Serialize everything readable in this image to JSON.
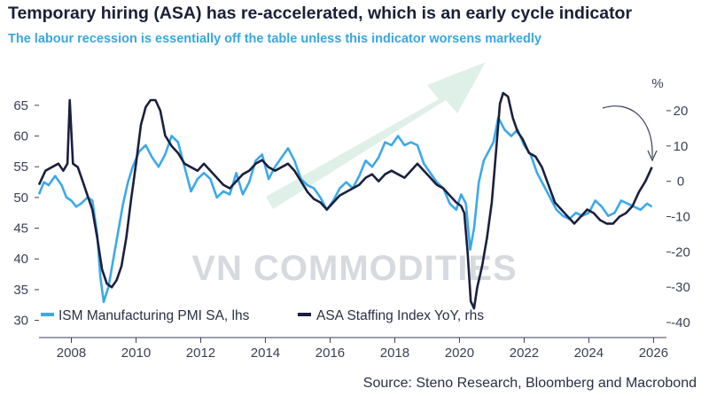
{
  "title": "Temporary hiring (ASA) has re-accelerated, which is an early cycle indicator",
  "subtitle": "The labour recession is essentially off the table unless this indicator worsens markedly",
  "source": "Source: Steno Research, Bloomberg and Macrobond",
  "watermark": "VN COMMODITIES",
  "colors": {
    "ism": "#3ca9e8",
    "asa": "#1b1f3f",
    "watermark_arrow": "#dff0e9",
    "axis": "#3b3f55"
  },
  "chart_data": {
    "type": "line",
    "title": "Temporary hiring (ASA) has re-accelerated, which is an early cycle indicator",
    "left_axis": {
      "label": "",
      "ylim": [
        28.5,
        67
      ],
      "ticks": [
        30,
        35,
        40,
        45,
        50,
        55,
        60,
        65
      ]
    },
    "right_axis": {
      "label": "%",
      "ylim": [
        -42,
        25
      ],
      "ticks": [
        -40,
        -30,
        -20,
        -10,
        0,
        10,
        20
      ]
    },
    "x_axis": {
      "xlim": [
        2007.0,
        2026.4
      ],
      "ticks": [
        2008,
        2010,
        2012,
        2014,
        2016,
        2018,
        2020,
        2022,
        2024,
        2026
      ]
    },
    "legend_position": "bottom-left",
    "series": [
      {
        "name": "ISM Manufacturing PMI SA, lhs",
        "axis": "left",
        "color": "#3ca9e8",
        "points": [
          [
            2007.0,
            50.5
          ],
          [
            2007.15,
            52.5
          ],
          [
            2007.3,
            52.0
          ],
          [
            2007.5,
            53.5
          ],
          [
            2007.7,
            52.0
          ],
          [
            2007.85,
            50.0
          ],
          [
            2008.0,
            49.5
          ],
          [
            2008.15,
            48.5
          ],
          [
            2008.3,
            49.0
          ],
          [
            2008.5,
            50.0
          ],
          [
            2008.65,
            49.5
          ],
          [
            2008.8,
            44.0
          ],
          [
            2008.9,
            37.0
          ],
          [
            2009.0,
            33.0
          ],
          [
            2009.15,
            35.5
          ],
          [
            2009.3,
            40.0
          ],
          [
            2009.45,
            44.5
          ],
          [
            2009.6,
            49.0
          ],
          [
            2009.75,
            52.5
          ],
          [
            2009.9,
            55.0
          ],
          [
            2010.1,
            57.5
          ],
          [
            2010.3,
            58.5
          ],
          [
            2010.5,
            56.5
          ],
          [
            2010.7,
            55.0
          ],
          [
            2010.9,
            57.0
          ],
          [
            2011.1,
            60.0
          ],
          [
            2011.3,
            59.0
          ],
          [
            2011.5,
            55.0
          ],
          [
            2011.7,
            51.0
          ],
          [
            2011.9,
            53.0
          ],
          [
            2012.1,
            54.0
          ],
          [
            2012.3,
            53.0
          ],
          [
            2012.5,
            50.0
          ],
          [
            2012.7,
            51.0
          ],
          [
            2012.9,
            50.5
          ],
          [
            2013.1,
            54.0
          ],
          [
            2013.3,
            50.5
          ],
          [
            2013.5,
            52.5
          ],
          [
            2013.7,
            56.0
          ],
          [
            2013.9,
            57.0
          ],
          [
            2014.1,
            53.0
          ],
          [
            2014.3,
            55.0
          ],
          [
            2014.5,
            56.5
          ],
          [
            2014.7,
            58.0
          ],
          [
            2014.9,
            56.0
          ],
          [
            2015.1,
            53.0
          ],
          [
            2015.3,
            52.0
          ],
          [
            2015.5,
            51.5
          ],
          [
            2015.7,
            50.0
          ],
          [
            2015.9,
            48.0
          ],
          [
            2016.1,
            49.5
          ],
          [
            2016.3,
            51.5
          ],
          [
            2016.5,
            52.5
          ],
          [
            2016.7,
            51.5
          ],
          [
            2016.9,
            53.5
          ],
          [
            2017.1,
            56.0
          ],
          [
            2017.3,
            55.0
          ],
          [
            2017.5,
            56.5
          ],
          [
            2017.7,
            59.0
          ],
          [
            2017.9,
            58.5
          ],
          [
            2018.1,
            60.0
          ],
          [
            2018.3,
            58.5
          ],
          [
            2018.5,
            59.0
          ],
          [
            2018.7,
            58.5
          ],
          [
            2018.9,
            55.5
          ],
          [
            2019.1,
            54.0
          ],
          [
            2019.3,
            52.5
          ],
          [
            2019.5,
            51.5
          ],
          [
            2019.7,
            49.0
          ],
          [
            2019.9,
            48.0
          ],
          [
            2020.05,
            50.5
          ],
          [
            2020.2,
            49.0
          ],
          [
            2020.33,
            41.5
          ],
          [
            2020.45,
            45.0
          ],
          [
            2020.6,
            52.5
          ],
          [
            2020.75,
            56.0
          ],
          [
            2020.9,
            57.5
          ],
          [
            2021.05,
            59.0
          ],
          [
            2021.2,
            63.0
          ],
          [
            2021.4,
            61.0
          ],
          [
            2021.6,
            60.0
          ],
          [
            2021.8,
            61.0
          ],
          [
            2022.0,
            58.5
          ],
          [
            2022.2,
            57.0
          ],
          [
            2022.4,
            54.0
          ],
          [
            2022.6,
            52.0
          ],
          [
            2022.8,
            50.0
          ],
          [
            2023.0,
            48.0
          ],
          [
            2023.2,
            47.0
          ],
          [
            2023.4,
            46.5
          ],
          [
            2023.6,
            47.5
          ],
          [
            2023.8,
            47.0
          ],
          [
            2024.0,
            47.5
          ],
          [
            2024.2,
            49.5
          ],
          [
            2024.4,
            48.5
          ],
          [
            2024.6,
            47.0
          ],
          [
            2024.8,
            47.5
          ],
          [
            2025.0,
            49.5
          ],
          [
            2025.2,
            49.0
          ],
          [
            2025.4,
            48.5
          ],
          [
            2025.6,
            48.0
          ],
          [
            2025.8,
            49.0
          ],
          [
            2025.95,
            48.5
          ]
        ]
      },
      {
        "name": "ASA Staffing Index YoY, rhs",
        "axis": "right",
        "color": "#1b1f3f",
        "points": [
          [
            2007.0,
            -1.0
          ],
          [
            2007.2,
            3.0
          ],
          [
            2007.4,
            4.0
          ],
          [
            2007.6,
            5.0
          ],
          [
            2007.75,
            3.0
          ],
          [
            2007.88,
            5.0
          ],
          [
            2007.95,
            23.0
          ],
          [
            2008.05,
            5.0
          ],
          [
            2008.2,
            4.0
          ],
          [
            2008.35,
            0.0
          ],
          [
            2008.5,
            -4.0
          ],
          [
            2008.65,
            -8.0
          ],
          [
            2008.8,
            -16.0
          ],
          [
            2008.95,
            -25.0
          ],
          [
            2009.1,
            -29.0
          ],
          [
            2009.25,
            -30.0
          ],
          [
            2009.4,
            -28.0
          ],
          [
            2009.55,
            -24.0
          ],
          [
            2009.7,
            -16.0
          ],
          [
            2009.85,
            -5.0
          ],
          [
            2010.0,
            5.0
          ],
          [
            2010.15,
            16.0
          ],
          [
            2010.3,
            21.0
          ],
          [
            2010.45,
            23.0
          ],
          [
            2010.6,
            23.0
          ],
          [
            2010.75,
            20.0
          ],
          [
            2010.9,
            13.0
          ],
          [
            2011.1,
            10.0
          ],
          [
            2011.3,
            8.0
          ],
          [
            2011.5,
            5.0
          ],
          [
            2011.7,
            4.0
          ],
          [
            2011.9,
            3.0
          ],
          [
            2012.1,
            5.0
          ],
          [
            2012.3,
            3.0
          ],
          [
            2012.5,
            1.0
          ],
          [
            2012.7,
            -1.0
          ],
          [
            2012.9,
            -2.0
          ],
          [
            2013.1,
            0.0
          ],
          [
            2013.3,
            2.0
          ],
          [
            2013.5,
            3.0
          ],
          [
            2013.7,
            5.0
          ],
          [
            2013.9,
            6.0
          ],
          [
            2014.1,
            4.0
          ],
          [
            2014.3,
            3.0
          ],
          [
            2014.5,
            4.0
          ],
          [
            2014.7,
            5.0
          ],
          [
            2014.9,
            3.0
          ],
          [
            2015.1,
            0.0
          ],
          [
            2015.3,
            -3.0
          ],
          [
            2015.5,
            -5.0
          ],
          [
            2015.7,
            -6.0
          ],
          [
            2015.9,
            -8.0
          ],
          [
            2016.1,
            -6.0
          ],
          [
            2016.3,
            -4.0
          ],
          [
            2016.5,
            -3.0
          ],
          [
            2016.7,
            -2.0
          ],
          [
            2016.9,
            -1.0
          ],
          [
            2017.1,
            1.0
          ],
          [
            2017.3,
            2.0
          ],
          [
            2017.5,
            0.0
          ],
          [
            2017.7,
            2.0
          ],
          [
            2017.9,
            3.0
          ],
          [
            2018.1,
            2.0
          ],
          [
            2018.3,
            1.0
          ],
          [
            2018.5,
            3.0
          ],
          [
            2018.7,
            5.0
          ],
          [
            2018.9,
            3.0
          ],
          [
            2019.1,
            1.0
          ],
          [
            2019.3,
            -1.0
          ],
          [
            2019.5,
            -2.0
          ],
          [
            2019.7,
            -4.0
          ],
          [
            2019.9,
            -6.0
          ],
          [
            2020.05,
            -7.0
          ],
          [
            2020.15,
            -9.0
          ],
          [
            2020.25,
            -20.0
          ],
          [
            2020.35,
            -34.0
          ],
          [
            2020.45,
            -36.0
          ],
          [
            2020.55,
            -30.0
          ],
          [
            2020.7,
            -24.0
          ],
          [
            2020.85,
            -16.0
          ],
          [
            2021.0,
            -6.0
          ],
          [
            2021.1,
            5.0
          ],
          [
            2021.25,
            22.0
          ],
          [
            2021.35,
            25.0
          ],
          [
            2021.5,
            24.0
          ],
          [
            2021.65,
            18.0
          ],
          [
            2021.8,
            14.0
          ],
          [
            2021.95,
            12.0
          ],
          [
            2022.15,
            8.0
          ],
          [
            2022.35,
            7.0
          ],
          [
            2022.55,
            4.0
          ],
          [
            2022.75,
            -1.0
          ],
          [
            2022.95,
            -6.0
          ],
          [
            2023.15,
            -8.0
          ],
          [
            2023.35,
            -10.0
          ],
          [
            2023.55,
            -12.0
          ],
          [
            2023.75,
            -10.0
          ],
          [
            2023.95,
            -8.0
          ],
          [
            2024.15,
            -9.0
          ],
          [
            2024.35,
            -11.0
          ],
          [
            2024.55,
            -12.0
          ],
          [
            2024.75,
            -12.0
          ],
          [
            2024.95,
            -10.0
          ],
          [
            2025.15,
            -9.0
          ],
          [
            2025.35,
            -7.0
          ],
          [
            2025.55,
            -3.0
          ],
          [
            2025.75,
            0.0
          ],
          [
            2025.95,
            4.0
          ]
        ]
      }
    ]
  }
}
